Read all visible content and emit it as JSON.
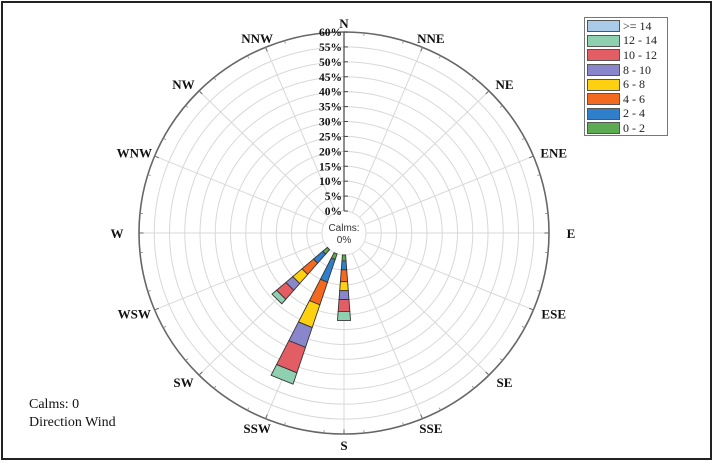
{
  "chart_data": {
    "type": "windrose",
    "title": "",
    "directions": [
      "N",
      "NNE",
      "NE",
      "ENE",
      "E",
      "ESE",
      "SE",
      "SSE",
      "S",
      "SSW",
      "SW",
      "WSW",
      "W",
      "WNW",
      "NW",
      "NNW"
    ],
    "radial_ticks": [
      "0%",
      "5%",
      "10%",
      "15%",
      "20%",
      "25%",
      "30%",
      "35%",
      "40%",
      "45%",
      "50%",
      "55%",
      "60%"
    ],
    "rmax": 60,
    "calms_center_label": "Calms:",
    "calms_center_value": "0%",
    "legend": [
      {
        "label": ">= 14",
        "color": "#a9cbe9"
      },
      {
        "label": "12 - 14",
        "color": "#8fd0b0"
      },
      {
        "label": "10 - 12",
        "color": "#e35d64"
      },
      {
        "label": "8 - 10",
        "color": "#8a86cc"
      },
      {
        "label": "6 - 8",
        "color": "#fdd10f"
      },
      {
        "label": "4 - 6",
        "color": "#f2691f"
      },
      {
        "label": "2 - 4",
        "color": "#2f7fcb"
      },
      {
        "label": "0 - 2",
        "color": "#5caa52"
      }
    ],
    "bins": [
      "0 - 2",
      "2 - 4",
      "4 - 6",
      "6 - 8",
      "8 - 10",
      "10 - 12",
      "12 - 14",
      ">= 14"
    ],
    "series_cumulative_percent": {
      "S": [
        2,
        5,
        9,
        12,
        15,
        19,
        22,
        22
      ],
      "SSW": [
        2,
        10,
        18,
        26,
        33,
        42,
        46,
        46
      ],
      "SW": [
        2,
        6,
        11,
        15,
        18,
        22,
        24,
        24
      ]
    }
  },
  "footer": {
    "calms": "Calms: 0",
    "caption": "Direction Wind"
  }
}
